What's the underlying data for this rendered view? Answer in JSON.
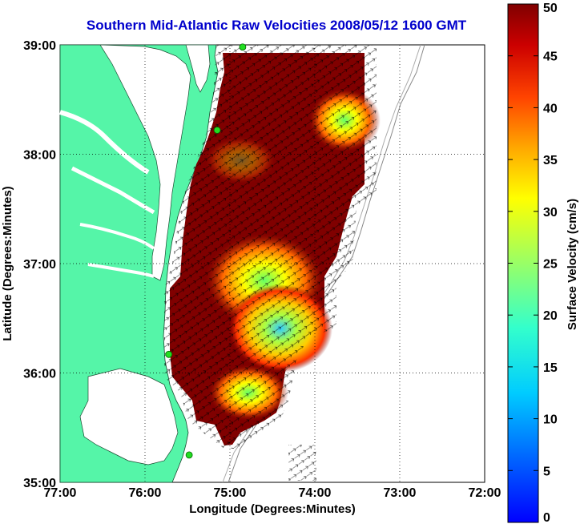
{
  "title": "Southern Mid-Atlantic Raw Velocities 2008/05/12 1600 GMT",
  "xlabel": "Longitude (Degrees:Minutes)",
  "ylabel": "Latitude (Degrees:Minutes)",
  "x_ticks": [
    "77:00",
    "76:00",
    "75:00",
    "74:00",
    "73:00",
    "72:00"
  ],
  "y_ticks": [
    "39:00",
    "38:00",
    "37:00",
    "36:00",
    "35:00"
  ],
  "colorbar": {
    "label": "Surface Velocity (cm/s)",
    "ticks": [
      "0",
      "5",
      "10",
      "15",
      "20",
      "25",
      "30",
      "35",
      "40",
      "45",
      "50"
    ],
    "range": [
      0,
      50
    ],
    "colormap": "jet"
  },
  "colors": {
    "land": "#55f5a8",
    "title": "#0000cc",
    "current_field": "#800000",
    "station": "#22dd22"
  },
  "map": {
    "lon_range": [
      -77,
      -72
    ],
    "lat_range": [
      35,
      39
    ],
    "grid": "dotted",
    "stations": [
      {
        "lon": -74.85,
        "lat": 38.98
      },
      {
        "lon": -75.15,
        "lat": 38.22
      },
      {
        "lon": -75.72,
        "lat": 36.17
      },
      {
        "lon": -75.48,
        "lat": 35.25
      }
    ]
  }
}
